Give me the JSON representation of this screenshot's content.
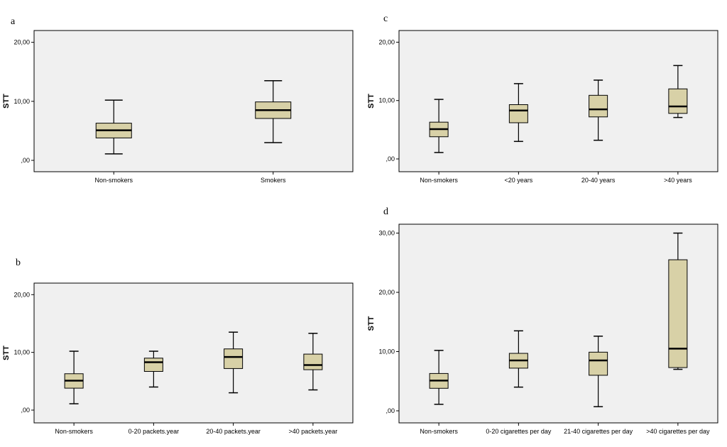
{
  "chart_data": [
    {
      "type": "box",
      "panel_label": "a",
      "ylabel": "STT",
      "ylim": [
        0,
        22
      ],
      "yticks": [
        0,
        10,
        20
      ],
      "ytick_labels": [
        ",00",
        "10,00",
        "20,00"
      ],
      "categories": [
        "Non-smokers",
        "Smokers"
      ],
      "box_color": "#d8d1a7",
      "boxes": [
        {
          "min": 1.1,
          "q1": 3.8,
          "median": 5.1,
          "q3": 6.3,
          "max": 10.2
        },
        {
          "min": 3.0,
          "q1": 7.1,
          "median": 8.5,
          "q3": 9.9,
          "max": 13.5
        }
      ]
    },
    {
      "type": "box",
      "panel_label": "b",
      "ylabel": "STT",
      "ylim": [
        0,
        22
      ],
      "yticks": [
        0,
        10,
        20
      ],
      "ytick_labels": [
        ",00",
        "10,00",
        "20,00"
      ],
      "categories": [
        "Non-smokers",
        "0-20 packets.year",
        "20-40 packets.year",
        ">40 packets.year"
      ],
      "box_color": "#d8d1a7",
      "boxes": [
        {
          "min": 1.1,
          "q1": 3.8,
          "median": 5.1,
          "q3": 6.3,
          "max": 10.2
        },
        {
          "min": 4.0,
          "q1": 6.7,
          "median": 8.3,
          "q3": 9.0,
          "max": 10.2
        },
        {
          "min": 3.0,
          "q1": 7.2,
          "median": 9.2,
          "q3": 10.6,
          "max": 13.5
        },
        {
          "min": 3.5,
          "q1": 7.0,
          "median": 7.8,
          "q3": 9.7,
          "max": 13.3
        }
      ]
    },
    {
      "type": "box",
      "panel_label": "c",
      "ylabel": "STT",
      "ylim": [
        0,
        22
      ],
      "yticks": [
        0,
        10,
        20
      ],
      "ytick_labels": [
        ",00",
        "10,00",
        "20,00"
      ],
      "categories": [
        "Non-smokers",
        "<20 years",
        "20-40 years",
        ">40 years"
      ],
      "box_color": "#d8d1a7",
      "boxes": [
        {
          "min": 1.1,
          "q1": 3.8,
          "median": 5.1,
          "q3": 6.3,
          "max": 10.2
        },
        {
          "min": 3.0,
          "q1": 6.2,
          "median": 8.3,
          "q3": 9.3,
          "max": 12.9
        },
        {
          "min": 3.2,
          "q1": 7.2,
          "median": 8.5,
          "q3": 10.9,
          "max": 13.5
        },
        {
          "min": 7.1,
          "q1": 7.8,
          "median": 9.0,
          "q3": 12.0,
          "max": 16.0
        }
      ]
    },
    {
      "type": "box",
      "panel_label": "d",
      "ylabel": "STT",
      "ylim": [
        0,
        31.5
      ],
      "yticks": [
        0,
        10,
        20,
        30
      ],
      "ytick_labels": [
        ",00",
        "10,00",
        "20,00",
        "30,00"
      ],
      "categories": [
        "Non-smokers",
        "0-20 cigarettes per day",
        "21-40 cigarettes per day",
        ">40 cigarettes per day"
      ],
      "box_color": "#d8d1a7",
      "boxes": [
        {
          "min": 1.1,
          "q1": 3.8,
          "median": 5.1,
          "q3": 6.3,
          "max": 10.2
        },
        {
          "min": 4.0,
          "q1": 7.2,
          "median": 8.5,
          "q3": 9.7,
          "max": 13.5
        },
        {
          "min": 0.7,
          "q1": 6.0,
          "median": 8.5,
          "q3": 9.9,
          "max": 12.6
        },
        {
          "min": 7.0,
          "q1": 7.3,
          "median": 10.5,
          "q3": 25.5,
          "max": 30.0
        }
      ]
    }
  ]
}
